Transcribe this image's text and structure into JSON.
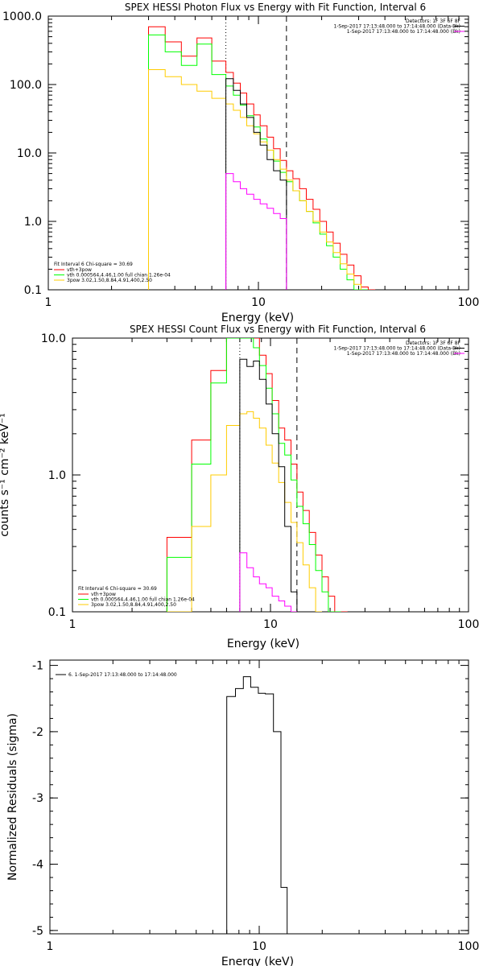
{
  "chart_data": [
    {
      "type": "line",
      "title": "SPEX HESSI Photon Flux vs Energy with Fit Function, Interval 6",
      "xlabel": "Energy (keV)",
      "ylabel": "",
      "xscale": "log",
      "yscale": "log",
      "xlim": [
        1,
        100
      ],
      "ylim": [
        0.1,
        1000
      ],
      "x_tick_labels": [
        "1",
        "10",
        "100"
      ],
      "y_tick_labels": [
        "0.1",
        "1.0",
        "10.0",
        "100.0",
        "1000.0"
      ],
      "y_tick_values": [
        0.1,
        1,
        10,
        100,
        1000
      ],
      "vlines": [
        {
          "x": 7.0,
          "style": "dotted"
        },
        {
          "x": 13.6,
          "style": "dashed"
        }
      ],
      "info_lines": [
        "Detectors: 1F 3F 6F 8F",
        "1-Sep-2017 17:13:48.000 to 17:14:48.000 (Data-Bk)",
        "1-Sep-2017 17:13:48.000 to 17:14:48.000 (Bk)"
      ],
      "info_colors": [
        "",
        "#000000",
        "#ff00ff"
      ],
      "legend_header": "Fit Interval 6    Chi-square = 30.69",
      "legend": [
        {
          "label": "vth+3pow",
          "color": "#ff0000"
        },
        {
          "label": "vth 0.000564,4.46,1.00  full chian 1.26e-04",
          "color": "#00ff00"
        },
        {
          "label": "3pow 3.02,1.50,8.84,4.91,400,2.50",
          "color": "#ffcc00"
        }
      ],
      "series": [
        {
          "name": "vth+3pow",
          "color": "#ff0000",
          "edges": [
            3.0,
            3.6,
            4.3,
            5.1,
            6.0,
            7.0,
            7.6,
            8.2,
            8.8,
            9.5,
            10.2,
            11.0,
            11.8,
            12.7,
            13.6,
            14.6,
            15.7,
            16.9,
            18.2,
            19.6,
            21.1,
            22.7,
            24.5,
            26.4,
            28.5,
            30.8,
            33.3,
            36.0
          ],
          "values": [
            700,
            420,
            260,
            480,
            220,
            150,
            105,
            75,
            52,
            36,
            25,
            17,
            11.5,
            7.8,
            5.5,
            4.2,
            3.0,
            2.1,
            1.5,
            1.0,
            0.7,
            0.48,
            0.33,
            0.23,
            0.16,
            0.11,
            0.1
          ]
        },
        {
          "name": "vth",
          "color": "#00ff00",
          "edges": [
            3.0,
            3.6,
            4.3,
            5.1,
            6.0,
            7.0,
            7.6,
            8.2,
            8.8,
            9.5,
            10.2,
            11.0,
            11.8,
            12.7,
            13.6,
            14.6,
            15.7,
            16.9,
            18.2,
            19.6,
            21.1,
            22.7,
            24.5,
            26.4,
            28.5,
            30.8,
            33.3
          ],
          "values": [
            530,
            300,
            190,
            390,
            140,
            95,
            70,
            50,
            35,
            24,
            16,
            11,
            7.6,
            5.2,
            3.8,
            2.8,
            2.0,
            1.4,
            0.95,
            0.65,
            0.44,
            0.3,
            0.2,
            0.14,
            0.1,
            0.1
          ]
        },
        {
          "name": "3pow",
          "color": "#ffcc00",
          "edges": [
            3.0,
            3.6,
            4.3,
            5.1,
            6.0,
            7.0,
            7.6,
            8.2,
            8.8,
            9.5,
            10.2,
            11.0,
            11.8,
            12.7,
            13.6,
            14.6,
            15.7,
            16.9,
            18.2,
            19.6,
            21.1,
            22.7,
            24.5,
            26.4,
            28.5,
            30.8
          ],
          "values": [
            165,
            130,
            100,
            80,
            63,
            52,
            42,
            33,
            25,
            19,
            14.5,
            11,
            8,
            5.8,
            4.0,
            2.8,
            2.0,
            1.4,
            1.0,
            0.7,
            0.5,
            0.35,
            0.24,
            0.17,
            0.12
          ]
        },
        {
          "name": "Data-Bk",
          "color": "#000000",
          "edges": [
            7.0,
            7.6,
            8.2,
            8.8,
            9.5,
            10.2,
            11.0,
            11.8,
            12.7,
            13.6
          ],
          "values": [
            122,
            82,
            52,
            33,
            20,
            13,
            8,
            5.5,
            4.0
          ]
        },
        {
          "name": "Bk",
          "color": "#ff00ff",
          "edges": [
            7.0,
            7.6,
            8.2,
            8.8,
            9.5,
            10.2,
            11.0,
            11.8,
            12.7,
            13.6
          ],
          "values": [
            5.0,
            3.8,
            3.0,
            2.5,
            2.1,
            1.8,
            1.55,
            1.3,
            1.1
          ]
        }
      ]
    },
    {
      "type": "line",
      "title": "SPEX HESSI Count Flux vs Energy with Fit Function, Interval 6",
      "xlabel": "Energy (keV)",
      "ylabel": "counts s⁻¹ cm⁻² keV⁻¹",
      "xscale": "log",
      "yscale": "log",
      "xlim": [
        1,
        100
      ],
      "ylim": [
        0.1,
        10
      ],
      "x_tick_labels": [
        "1",
        "10",
        "100"
      ],
      "y_tick_labels": [
        "0.1",
        "1.0",
        "10.0"
      ],
      "y_tick_values": [
        0.1,
        1,
        10
      ],
      "vlines": [
        {
          "x": 7.0,
          "style": "dotted"
        },
        {
          "x": 13.6,
          "style": "dashed"
        }
      ],
      "info_lines": [
        "Detectors: 1F 3F 6F 8F",
        "1-Sep-2017 17:13:48.000 to 17:14:48.000 (Data-Bk)",
        "1-Sep-2017 17:13:48.000 to 17:14:48.000 (Bk)"
      ],
      "info_colors": [
        "",
        "#000000",
        "#ff00ff"
      ],
      "legend_header": "Fit Interval 6    Chi-square = 30.69",
      "legend": [
        {
          "label": "vth+3pow",
          "color": "#ff0000"
        },
        {
          "label": "vth 0.000564,4.46,1.00  full chian 1.26e-04",
          "color": "#00ff00"
        },
        {
          "label": "3pow 3.02,1.50,8.84,4.91,400,2.50",
          "color": "#ffcc00"
        }
      ],
      "series": [
        {
          "name": "vth+3pow",
          "color": "#ff0000",
          "edges": [
            3.0,
            4.0,
            5.0,
            6.0,
            7.0,
            7.6,
            8.2,
            8.8,
            9.5,
            10.2,
            11.0,
            11.8,
            12.7,
            13.6,
            14.6,
            15.7,
            16.9,
            18.2,
            19.6,
            21.1,
            22.7,
            24.5
          ],
          "values": [
            0.35,
            1.8,
            5.8,
            10,
            10,
            10,
            10,
            7.5,
            5.5,
            3.5,
            2.2,
            1.8,
            1.2,
            0.75,
            0.55,
            0.38,
            0.26,
            0.18,
            0.13,
            0.1,
            0.1
          ]
        },
        {
          "name": "vth",
          "color": "#00ff00",
          "edges": [
            3.0,
            4.0,
            5.0,
            6.0,
            7.0,
            7.6,
            8.2,
            8.8,
            9.5,
            10.2,
            11.0,
            11.8,
            12.7,
            13.6,
            14.6,
            15.7,
            16.9,
            18.2,
            19.6,
            21.1,
            22.7
          ],
          "values": [
            0.25,
            1.2,
            4.7,
            10,
            10,
            10,
            8.5,
            6.3,
            4.3,
            2.8,
            1.7,
            1.4,
            0.92,
            0.59,
            0.44,
            0.31,
            0.2,
            0.14,
            0.1,
            0.1
          ]
        },
        {
          "name": "3pow",
          "color": "#ffcc00",
          "edges": [
            3.0,
            4.0,
            5.0,
            6.0,
            7.0,
            7.6,
            8.2,
            8.8,
            9.5,
            10.2,
            11.0,
            11.8,
            12.7,
            13.6,
            14.6,
            15.7,
            16.9,
            18.2
          ],
          "values": [
            0.1,
            0.42,
            1.0,
            2.3,
            2.8,
            2.9,
            2.6,
            2.2,
            1.65,
            1.22,
            0.88,
            0.63,
            0.45,
            0.32,
            0.22,
            0.15,
            0.1
          ]
        },
        {
          "name": "Data-Bk",
          "color": "#000000",
          "edges": [
            7.0,
            7.6,
            8.2,
            8.8,
            9.5,
            10.2,
            11.0,
            11.8,
            12.7,
            13.6
          ],
          "values": [
            7.0,
            6.2,
            6.8,
            5.0,
            3.3,
            2.0,
            1.15,
            0.42,
            0.14
          ]
        },
        {
          "name": "Bk",
          "color": "#ff00ff",
          "edges": [
            7.0,
            7.6,
            8.2,
            8.8,
            9.5,
            10.2,
            11.0,
            11.8,
            12.7,
            13.6
          ],
          "values": [
            0.27,
            0.21,
            0.18,
            0.16,
            0.15,
            0.13,
            0.12,
            0.11,
            0.1
          ]
        }
      ]
    },
    {
      "type": "line",
      "title": "",
      "xlabel": "Energy (keV)",
      "ylabel": "Normalized Residuals (sigma)",
      "xscale": "log",
      "yscale": "linear",
      "xlim": [
        1,
        100
      ],
      "ylim": [
        -5.05,
        -0.92
      ],
      "x_tick_labels": [
        "1",
        "10",
        "100"
      ],
      "y_tick_labels": [
        "-5",
        "-4",
        "-3",
        "-2",
        "-1"
      ],
      "y_tick_values": [
        -5,
        -4,
        -3,
        -2,
        -1
      ],
      "legend": [
        {
          "label": "6. 1-Sep-2017 17:13:48.000 to 17:14:48.000",
          "color": "#000000"
        }
      ],
      "series": [
        {
          "name": "6. 1-Sep-2017 17:13:48.000 to 17:14:48.000",
          "color": "#000000",
          "edges": [
            7.0,
            7.7,
            8.4,
            9.1,
            9.9,
            10.7,
            11.7,
            12.7,
            13.6
          ],
          "values": [
            -1.47,
            -1.35,
            -1.17,
            -1.33,
            -1.42,
            -1.43,
            -2.0,
            -4.35
          ]
        }
      ]
    }
  ]
}
